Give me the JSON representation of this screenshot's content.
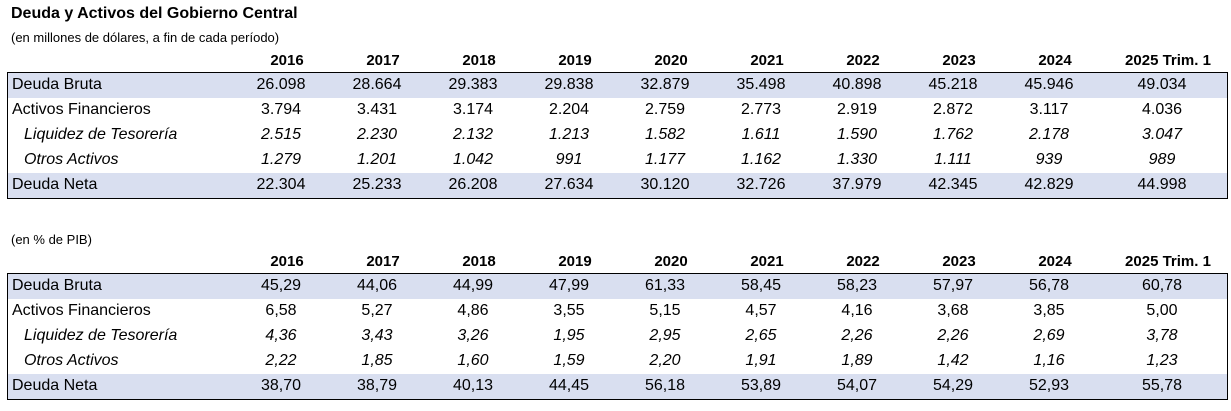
{
  "title": "Deuda y Activos del Gobierno Central",
  "subtitle_usd": "(en millones de dólares, a fin de cada período)",
  "subtitle_pib": "(en % de PIB)",
  "years": [
    "2016",
    "2017",
    "2018",
    "2019",
    "2020",
    "2021",
    "2022",
    "2023",
    "2024",
    "2025 Trim. 1"
  ],
  "table_usd": {
    "rows": [
      {
        "label": "Deuda Bruta",
        "values": [
          "26.098",
          "28.664",
          "29.383",
          "29.838",
          "32.879",
          "35.498",
          "40.898",
          "45.218",
          "45.946",
          "49.034"
        ]
      },
      {
        "label": "Activos Financieros",
        "values": [
          "3.794",
          "3.431",
          "3.174",
          "2.204",
          "2.759",
          "2.773",
          "2.919",
          "2.872",
          "3.117",
          "4.036"
        ]
      },
      {
        "label": "Liquidez de Tesorería",
        "values": [
          "2.515",
          "2.230",
          "2.132",
          "1.213",
          "1.582",
          "1.611",
          "1.590",
          "1.762",
          "2.178",
          "3.047"
        ]
      },
      {
        "label": "Otros Activos",
        "values": [
          "1.279",
          "1.201",
          "1.042",
          "991",
          "1.177",
          "1.162",
          "1.330",
          "1.111",
          "939",
          "989"
        ]
      },
      {
        "label": "Deuda Neta",
        "values": [
          "22.304",
          "25.233",
          "26.208",
          "27.634",
          "30.120",
          "32.726",
          "37.979",
          "42.345",
          "42.829",
          "44.998"
        ]
      }
    ]
  },
  "table_pib": {
    "rows": [
      {
        "label": "Deuda Bruta",
        "values": [
          "45,29",
          "44,06",
          "44,99",
          "47,99",
          "61,33",
          "58,45",
          "58,23",
          "57,97",
          "56,78",
          "60,78"
        ]
      },
      {
        "label": "Activos Financieros",
        "values": [
          "6,58",
          "5,27",
          "4,86",
          "3,55",
          "5,15",
          "4,57",
          "4,16",
          "3,68",
          "3,85",
          "5,00"
        ]
      },
      {
        "label": "Liquidez de Tesorería",
        "values": [
          "4,36",
          "3,43",
          "3,26",
          "1,95",
          "2,95",
          "2,65",
          "2,26",
          "2,26",
          "2,69",
          "3,78"
        ]
      },
      {
        "label": "Otros Activos",
        "values": [
          "2,22",
          "1,85",
          "1,60",
          "1,59",
          "2,20",
          "1,91",
          "1,89",
          "1,42",
          "1,16",
          "1,23"
        ]
      },
      {
        "label": "Deuda Neta",
        "values": [
          "38,70",
          "38,79",
          "40,13",
          "44,45",
          "56,18",
          "53,89",
          "54,07",
          "54,29",
          "52,93",
          "55,78"
        ]
      }
    ]
  }
}
